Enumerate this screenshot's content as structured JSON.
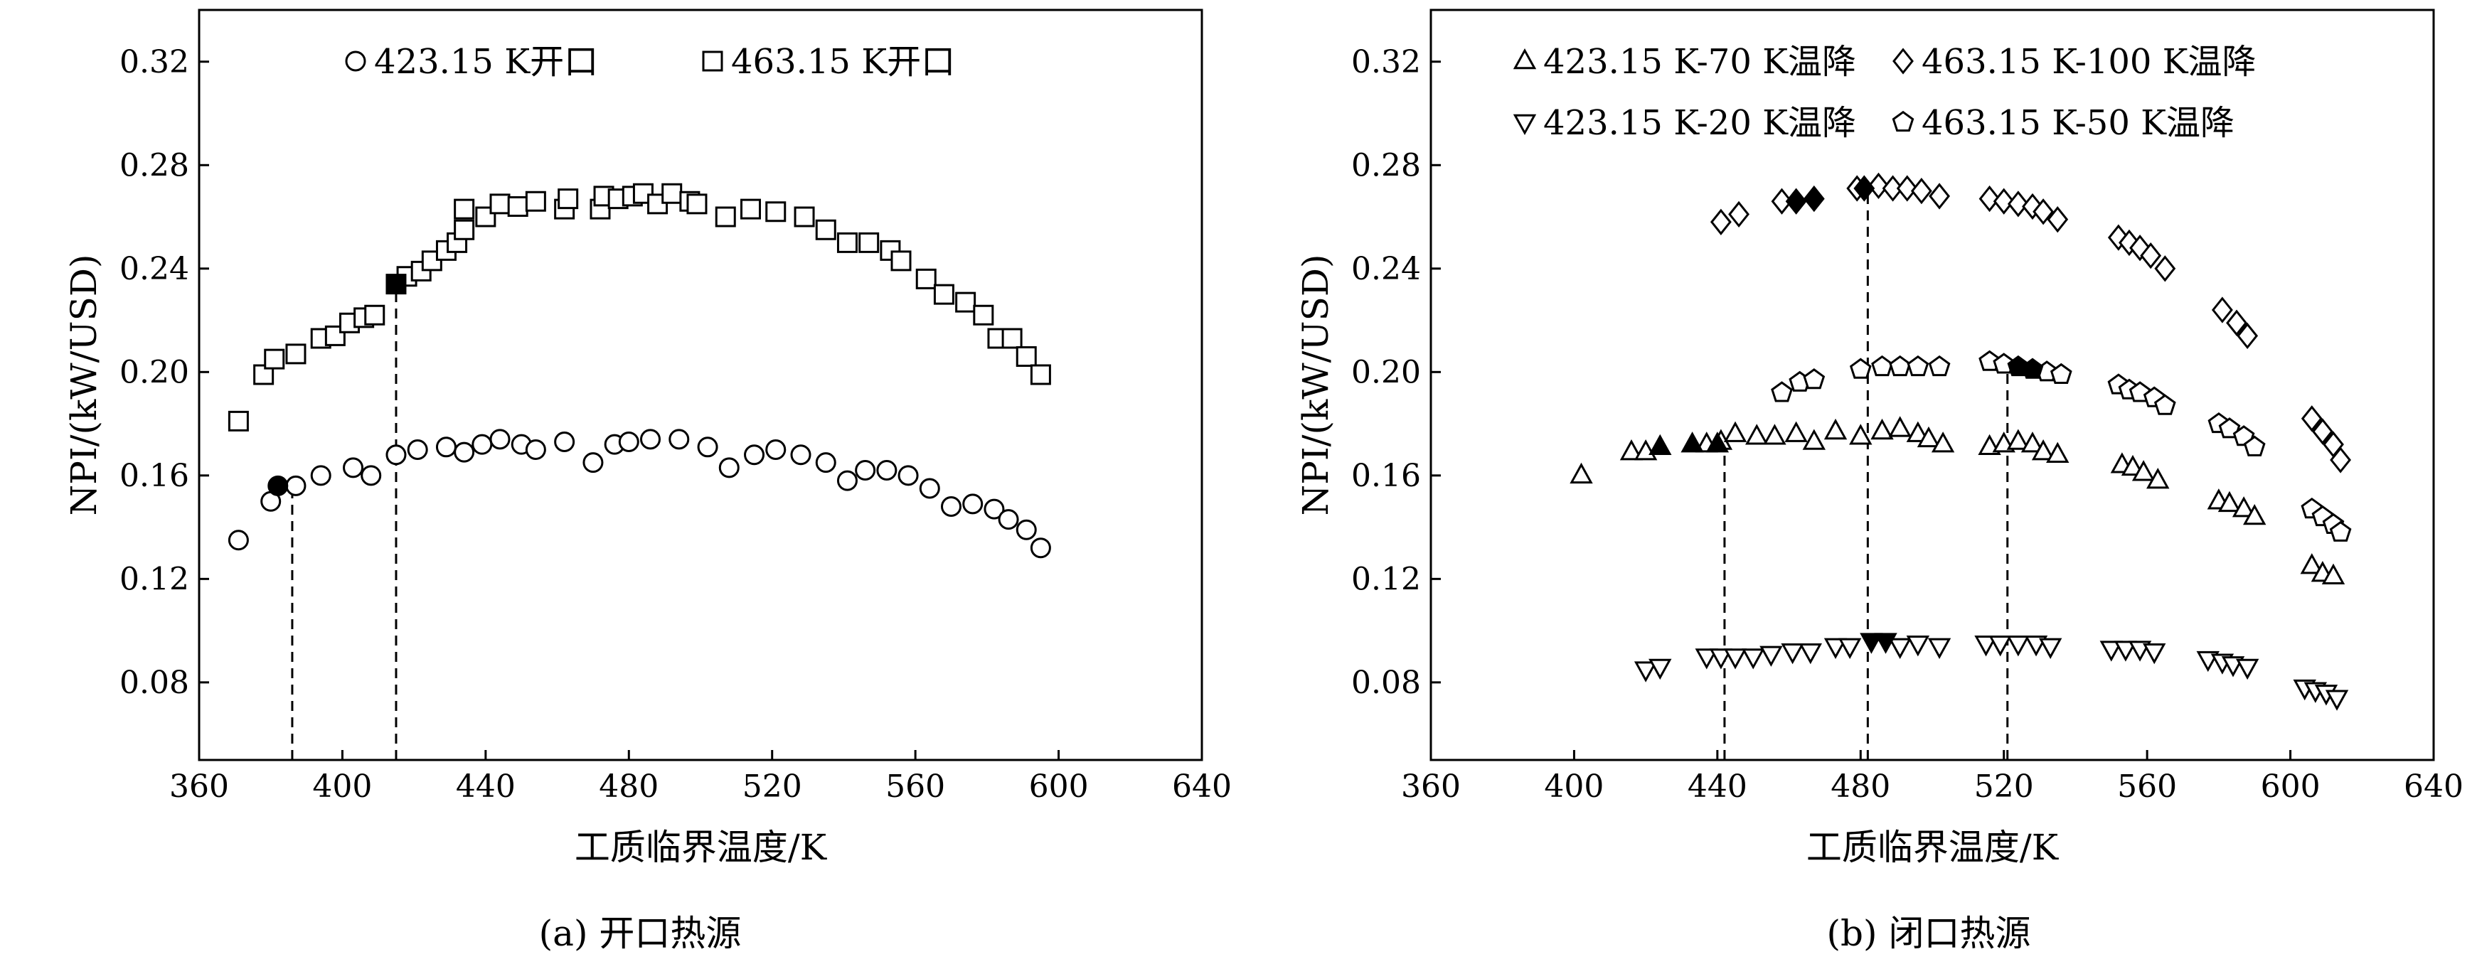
{
  "captions": [
    "(a) 开口热源",
    "(b) 闭口热源"
  ],
  "chart_data": [
    {
      "type": "scatter",
      "xlabel": "工质临界温度/K",
      "ylabel": "NPI/(kW/USD)",
      "xlim": [
        360,
        640
      ],
      "ylim": [
        0.05,
        0.34
      ],
      "xticks": [
        360,
        400,
        440,
        480,
        520,
        560,
        600,
        640
      ],
      "xtick_labels": [
        "360",
        "400",
        "440",
        "480",
        "520",
        "560",
        "600",
        "640"
      ],
      "yticks": [
        0.08,
        0.12,
        0.16,
        0.2,
        0.24,
        0.28,
        0.32
      ],
      "ytick_labels": [
        "0.08",
        "0.12",
        "0.16",
        "0.20",
        "0.24",
        "0.28",
        "0.32"
      ],
      "grid": false,
      "legend_position": "top",
      "series": [
        {
          "name": "423.15 K开口",
          "marker": "circle",
          "points": [
            [
              371,
              0.135
            ],
            [
              380,
              0.15
            ],
            [
              387,
              0.156
            ],
            [
              394,
              0.16
            ],
            [
              403,
              0.163
            ],
            [
              408,
              0.16
            ],
            [
              415,
              0.168
            ],
            [
              421,
              0.17
            ],
            [
              429,
              0.171
            ],
            [
              434,
              0.169
            ],
            [
              439,
              0.172
            ],
            [
              444,
              0.174
            ],
            [
              450,
              0.172
            ],
            [
              454,
              0.17
            ],
            [
              462,
              0.173
            ],
            [
              470,
              0.165
            ],
            [
              476,
              0.172
            ],
            [
              480,
              0.173
            ],
            [
              486,
              0.174
            ],
            [
              494,
              0.174
            ],
            [
              502,
              0.171
            ],
            [
              508,
              0.163
            ],
            [
              515,
              0.168
            ],
            [
              521,
              0.17
            ],
            [
              528,
              0.168
            ],
            [
              535,
              0.165
            ],
            [
              541,
              0.158
            ],
            [
              546,
              0.162
            ],
            [
              552,
              0.162
            ],
            [
              558,
              0.16
            ],
            [
              564,
              0.155
            ],
            [
              570,
              0.148
            ],
            [
              576,
              0.149
            ],
            [
              582,
              0.147
            ],
            [
              586,
              0.143
            ],
            [
              591,
              0.139
            ],
            [
              595,
              0.132
            ]
          ],
          "highlight": [
            [
              382,
              0.156
            ]
          ],
          "highlight_vline_x": 386
        },
        {
          "name": "463.15 K开口",
          "marker": "square",
          "points": [
            [
              371,
              0.181
            ],
            [
              378,
              0.199
            ],
            [
              381,
              0.205
            ],
            [
              387,
              0.207
            ],
            [
              394,
              0.213
            ],
            [
              398,
              0.214
            ],
            [
              402,
              0.219
            ],
            [
              406,
              0.221
            ],
            [
              409,
              0.222
            ],
            [
              418,
              0.237
            ],
            [
              422,
              0.239
            ],
            [
              425,
              0.243
            ],
            [
              429,
              0.247
            ],
            [
              432,
              0.25
            ],
            [
              434,
              0.255
            ],
            [
              434,
              0.263
            ],
            [
              440,
              0.26
            ],
            [
              444,
              0.265
            ],
            [
              449,
              0.264
            ],
            [
              454,
              0.266
            ],
            [
              462,
              0.263
            ],
            [
              463,
              0.267
            ],
            [
              472,
              0.263
            ],
            [
              473,
              0.268
            ],
            [
              477,
              0.267
            ],
            [
              481,
              0.268
            ],
            [
              484,
              0.269
            ],
            [
              488,
              0.265
            ],
            [
              492,
              0.269
            ],
            [
              497,
              0.266
            ],
            [
              499,
              0.265
            ],
            [
              507,
              0.26
            ],
            [
              514,
              0.263
            ],
            [
              521,
              0.262
            ],
            [
              529,
              0.26
            ],
            [
              535,
              0.255
            ],
            [
              541,
              0.25
            ],
            [
              547,
              0.25
            ],
            [
              553,
              0.247
            ],
            [
              556,
              0.243
            ],
            [
              563,
              0.236
            ],
            [
              568,
              0.23
            ],
            [
              574,
              0.227
            ],
            [
              579,
              0.222
            ],
            [
              583,
              0.213
            ],
            [
              587,
              0.213
            ],
            [
              591,
              0.206
            ],
            [
              595,
              0.199
            ]
          ],
          "highlight": [
            [
              415,
              0.234
            ]
          ],
          "highlight_vline_x": 415
        }
      ]
    },
    {
      "type": "scatter",
      "xlabel": "工质临界温度/K",
      "ylabel": "NPI/(kW/USD)",
      "xlim": [
        360,
        640
      ],
      "ylim": [
        0.05,
        0.34
      ],
      "xticks": [
        360,
        400,
        440,
        480,
        520,
        560,
        600,
        640
      ],
      "xtick_labels": [
        "360",
        "400",
        "440",
        "480",
        "520",
        "560",
        "600",
        "640"
      ],
      "yticks": [
        0.08,
        0.12,
        0.16,
        0.2,
        0.24,
        0.28,
        0.32
      ],
      "ytick_labels": [
        "0.08",
        "0.12",
        "0.16",
        "0.20",
        "0.24",
        "0.28",
        "0.32"
      ],
      "grid": false,
      "legend_position": "top",
      "vlines_x": [
        442,
        482,
        521
      ],
      "series": [
        {
          "name": "423.15 K-70 K温降",
          "marker": "triangle-up",
          "points": [
            [
              402,
              0.16
            ],
            [
              416,
              0.169
            ],
            [
              420,
              0.169
            ],
            [
              437,
              0.172
            ],
            [
              441,
              0.173
            ],
            [
              445,
              0.176
            ],
            [
              451,
              0.175
            ],
            [
              456,
              0.175
            ],
            [
              462,
              0.176
            ],
            [
              467,
              0.173
            ],
            [
              473,
              0.177
            ],
            [
              480,
              0.175
            ],
            [
              486,
              0.177
            ],
            [
              491,
              0.178
            ],
            [
              496,
              0.176
            ],
            [
              499,
              0.174
            ],
            [
              503,
              0.172
            ],
            [
              516,
              0.171
            ],
            [
              520,
              0.172
            ],
            [
              524,
              0.173
            ],
            [
              528,
              0.172
            ],
            [
              531,
              0.169
            ],
            [
              535,
              0.168
            ],
            [
              553,
              0.164
            ],
            [
              556,
              0.163
            ],
            [
              559,
              0.161
            ],
            [
              563,
              0.158
            ],
            [
              580,
              0.15
            ],
            [
              583,
              0.149
            ],
            [
              587,
              0.147
            ],
            [
              590,
              0.144
            ],
            [
              606,
              0.125
            ],
            [
              609,
              0.122
            ],
            [
              612,
              0.121
            ]
          ],
          "highlight": [
            [
              424,
              0.171
            ],
            [
              433,
              0.172
            ],
            [
              440,
              0.172
            ]
          ]
        },
        {
          "name": "423.15 K-20 K温降",
          "marker": "triangle-down",
          "points": [
            [
              420,
              0.085
            ],
            [
              424,
              0.086
            ],
            [
              437,
              0.09
            ],
            [
              441,
              0.09
            ],
            [
              445,
              0.09
            ],
            [
              450,
              0.09
            ],
            [
              455,
              0.091
            ],
            [
              461,
              0.092
            ],
            [
              466,
              0.092
            ],
            [
              473,
              0.094
            ],
            [
              477,
              0.094
            ],
            [
              491,
              0.094
            ],
            [
              496,
              0.095
            ],
            [
              502,
              0.094
            ],
            [
              515,
              0.095
            ],
            [
              519,
              0.095
            ],
            [
              524,
              0.095
            ],
            [
              529,
              0.095
            ],
            [
              533,
              0.094
            ],
            [
              550,
              0.093
            ],
            [
              554,
              0.093
            ],
            [
              558,
              0.093
            ],
            [
              562,
              0.092
            ],
            [
              577,
              0.089
            ],
            [
              581,
              0.088
            ],
            [
              584,
              0.087
            ],
            [
              588,
              0.086
            ],
            [
              604,
              0.078
            ],
            [
              607,
              0.077
            ],
            [
              610,
              0.076
            ],
            [
              613,
              0.074
            ]
          ],
          "highlight": [
            [
              483,
              0.096
            ],
            [
              487,
              0.096
            ]
          ]
        },
        {
          "name": "463.15 K-100 K温降",
          "marker": "diamond",
          "points": [
            [
              441,
              0.258
            ],
            [
              446,
              0.261
            ],
            [
              458,
              0.266
            ],
            [
              479,
              0.271
            ],
            [
              485,
              0.272
            ],
            [
              489,
              0.271
            ],
            [
              493,
              0.271
            ],
            [
              497,
              0.27
            ],
            [
              502,
              0.268
            ],
            [
              516,
              0.267
            ],
            [
              520,
              0.266
            ],
            [
              524,
              0.265
            ],
            [
              528,
              0.264
            ],
            [
              531,
              0.262
            ],
            [
              535,
              0.259
            ],
            [
              552,
              0.252
            ],
            [
              555,
              0.25
            ],
            [
              558,
              0.248
            ],
            [
              561,
              0.245
            ],
            [
              565,
              0.24
            ],
            [
              581,
              0.224
            ],
            [
              585,
              0.219
            ],
            [
              588,
              0.214
            ],
            [
              606,
              0.182
            ],
            [
              609,
              0.177
            ],
            [
              612,
              0.172
            ],
            [
              614,
              0.166
            ]
          ],
          "highlight": [
            [
              462,
              0.266
            ],
            [
              467,
              0.267
            ],
            [
              481,
              0.271
            ]
          ]
        },
        {
          "name": "463.15 K-50 K温降",
          "marker": "pentagon",
          "points": [
            [
              458,
              0.192
            ],
            [
              463,
              0.196
            ],
            [
              467,
              0.197
            ],
            [
              480,
              0.201
            ],
            [
              486,
              0.202
            ],
            [
              491,
              0.202
            ],
            [
              496,
              0.202
            ],
            [
              502,
              0.202
            ],
            [
              516,
              0.204
            ],
            [
              520,
              0.203
            ],
            [
              532,
              0.2
            ],
            [
              536,
              0.199
            ],
            [
              552,
              0.195
            ],
            [
              555,
              0.193
            ],
            [
              558,
              0.192
            ],
            [
              562,
              0.19
            ],
            [
              565,
              0.187
            ],
            [
              580,
              0.18
            ],
            [
              583,
              0.178
            ],
            [
              587,
              0.175
            ],
            [
              590,
              0.171
            ],
            [
              606,
              0.147
            ],
            [
              609,
              0.144
            ],
            [
              612,
              0.141
            ],
            [
              614,
              0.138
            ]
          ],
          "highlight": [
            [
              524,
              0.202
            ],
            [
              528,
              0.201
            ]
          ]
        }
      ]
    }
  ]
}
